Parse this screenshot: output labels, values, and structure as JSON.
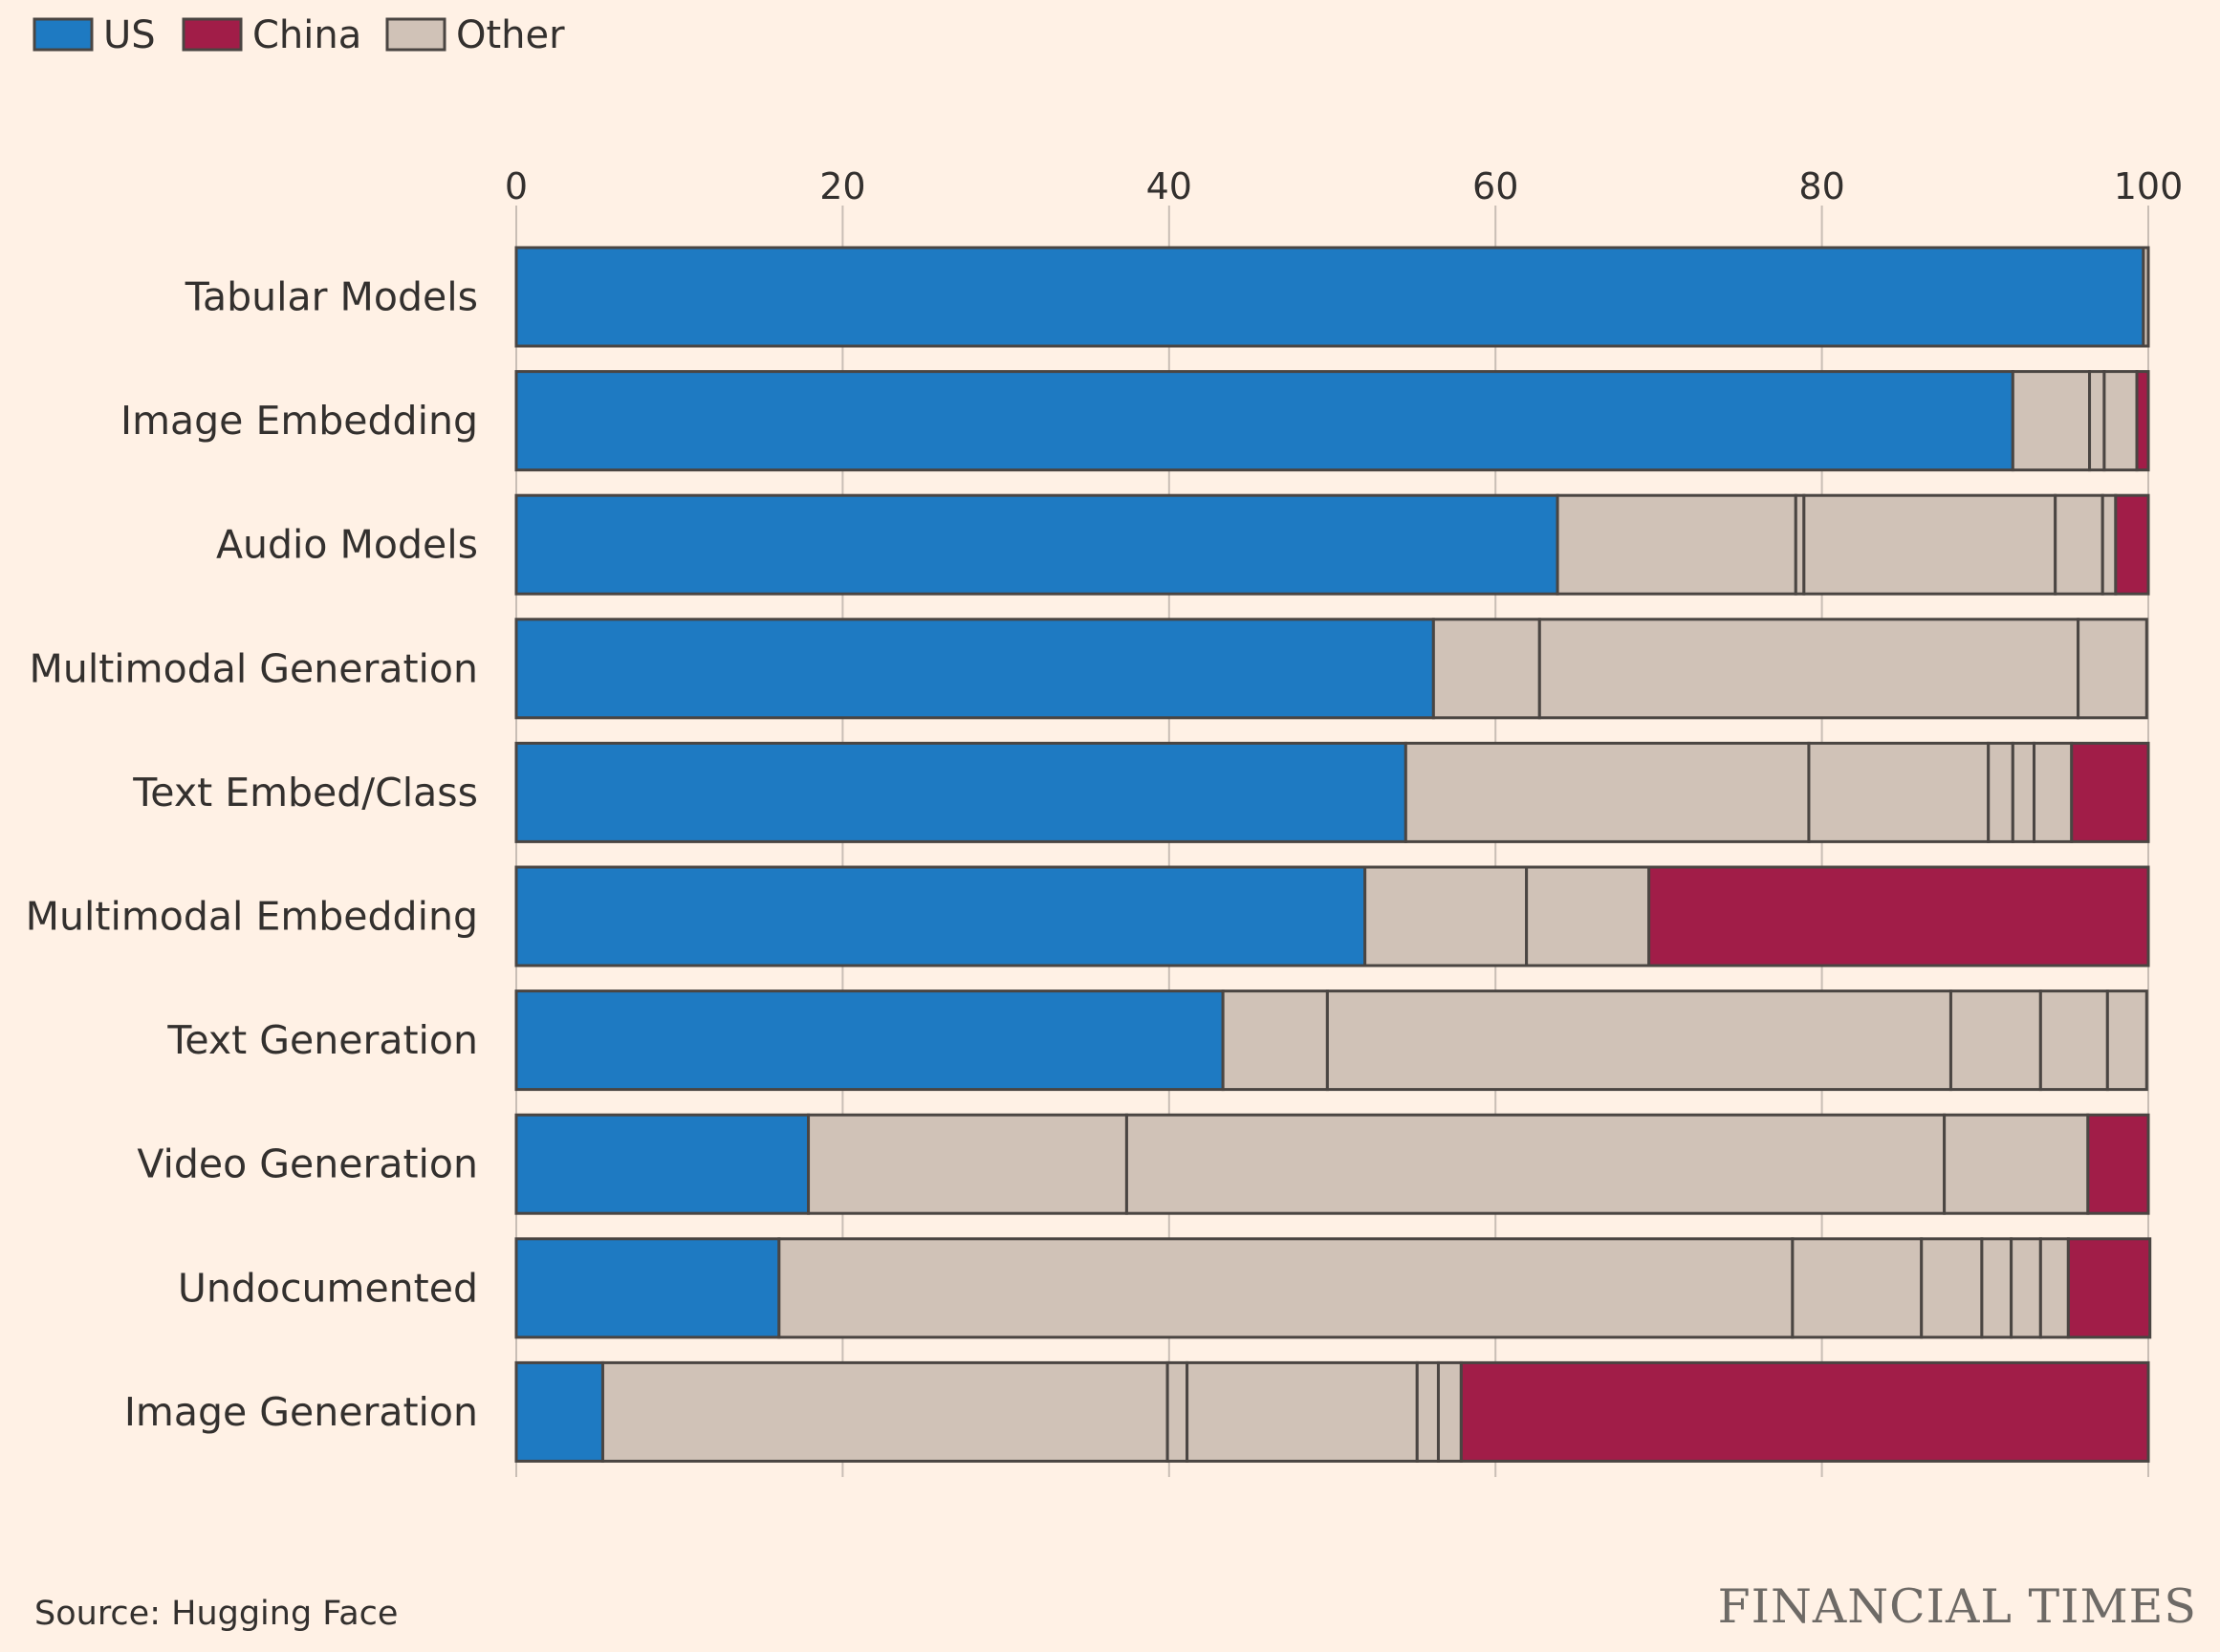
{
  "colors": {
    "background": "#FFF1E5",
    "us": "#1E7AC2",
    "china": "#A11D48",
    "other": "#D0C2B7",
    "segment_stroke": "#4A4542",
    "gridline": "#C9BEB5",
    "text": "#33302E",
    "logo": "#6E6A66"
  },
  "source": "Source: Hugging Face",
  "brand": "FINANCIAL TIMES",
  "chart_data": {
    "type": "bar",
    "orientation": "horizontal",
    "stacked": true,
    "title": "",
    "xlabel": "",
    "ylabel": "",
    "xlim": [
      0,
      100
    ],
    "xticks": [
      0,
      20,
      40,
      60,
      80,
      100
    ],
    "grid": true,
    "legend_position": "top-left",
    "legend": [
      {
        "name": "US",
        "color_key": "us"
      },
      {
        "name": "China",
        "color_key": "china"
      },
      {
        "name": "Other",
        "color_key": "other"
      }
    ],
    "categories": [
      "Tabular Models",
      "Image Embedding",
      "Audio Models",
      "Multimodal Generation",
      "Text Embed/Class",
      "Multimodal Embedding",
      "Text Generation",
      "Video Generation",
      "Undocumented",
      "Image Generation"
    ],
    "bars": [
      {
        "category": "Tabular Models",
        "segments": [
          {
            "group": "US",
            "value": 99.7
          },
          {
            "group": "Other",
            "value": 0.3
          }
        ]
      },
      {
        "category": "Image Embedding",
        "segments": [
          {
            "group": "US",
            "value": 91.7
          },
          {
            "group": "Other",
            "value": 4.7
          },
          {
            "group": "Other",
            "value": 0.9
          },
          {
            "group": "Other",
            "value": 2.0
          },
          {
            "group": "China",
            "value": 0.7
          }
        ]
      },
      {
        "category": "Audio Models",
        "segments": [
          {
            "group": "US",
            "value": 63.8
          },
          {
            "group": "Other",
            "value": 14.6
          },
          {
            "group": "Other",
            "value": 0.5
          },
          {
            "group": "Other",
            "value": 15.4
          },
          {
            "group": "Other",
            "value": 2.9
          },
          {
            "group": "Other",
            "value": 0.8
          },
          {
            "group": "China",
            "value": 2.0
          }
        ]
      },
      {
        "category": "Multimodal Generation",
        "segments": [
          {
            "group": "US",
            "value": 56.2
          },
          {
            "group": "Other",
            "value": 6.5
          },
          {
            "group": "Other",
            "value": 33.0
          },
          {
            "group": "Other",
            "value": 4.2
          }
        ]
      },
      {
        "category": "Text Embed/Class",
        "segments": [
          {
            "group": "US",
            "value": 54.5
          },
          {
            "group": "Other",
            "value": 24.7
          },
          {
            "group": "Other",
            "value": 11.0
          },
          {
            "group": "Other",
            "value": 1.5
          },
          {
            "group": "Other",
            "value": 1.3
          },
          {
            "group": "Other",
            "value": 2.3
          },
          {
            "group": "China",
            "value": 4.7
          }
        ]
      },
      {
        "category": "Multimodal Embedding",
        "segments": [
          {
            "group": "US",
            "value": 52.0
          },
          {
            "group": "Other",
            "value": 9.9
          },
          {
            "group": "Other",
            "value": 7.5
          },
          {
            "group": "China",
            "value": 30.6
          }
        ]
      },
      {
        "category": "Text Generation",
        "segments": [
          {
            "group": "US",
            "value": 43.3
          },
          {
            "group": "Other",
            "value": 6.4
          },
          {
            "group": "Other",
            "value": 38.2
          },
          {
            "group": "Other",
            "value": 5.5
          },
          {
            "group": "Other",
            "value": 4.1
          },
          {
            "group": "Other",
            "value": 2.4
          }
        ]
      },
      {
        "category": "Video Generation",
        "segments": [
          {
            "group": "US",
            "value": 17.9
          },
          {
            "group": "Other",
            "value": 19.5
          },
          {
            "group": "Other",
            "value": 50.1
          },
          {
            "group": "Other",
            "value": 8.8
          },
          {
            "group": "China",
            "value": 3.7
          }
        ]
      },
      {
        "category": "Undocumented",
        "segments": [
          {
            "group": "US",
            "value": 16.1
          },
          {
            "group": "Other",
            "value": 62.1
          },
          {
            "group": "Other",
            "value": 7.9
          },
          {
            "group": "Other",
            "value": 3.7
          },
          {
            "group": "Other",
            "value": 1.8
          },
          {
            "group": "Other",
            "value": 1.8
          },
          {
            "group": "Other",
            "value": 1.7
          },
          {
            "group": "China",
            "value": 5.0
          }
        ]
      },
      {
        "category": "Image Generation",
        "segments": [
          {
            "group": "US",
            "value": 5.3
          },
          {
            "group": "Other",
            "value": 34.6
          },
          {
            "group": "Other",
            "value": 1.2
          },
          {
            "group": "Other",
            "value": 14.1
          },
          {
            "group": "Other",
            "value": 1.3
          },
          {
            "group": "Other",
            "value": 1.4
          },
          {
            "group": "China",
            "value": 42.1
          }
        ]
      }
    ]
  }
}
